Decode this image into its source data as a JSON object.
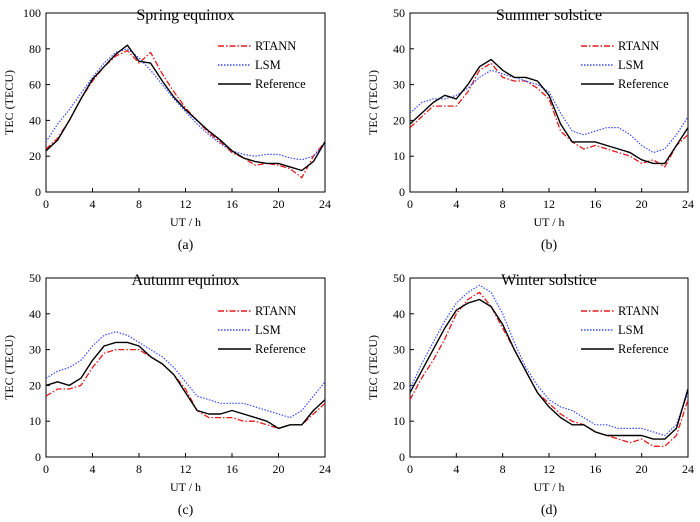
{
  "figure": {
    "legend_labels": [
      "RTANN",
      "LSM",
      "Reference"
    ],
    "colors": {
      "RTANN": "#e41a1c",
      "LSM": "#3b4cff",
      "Reference": "#000000"
    }
  },
  "chart_data": [
    {
      "type": "line",
      "panel": "(a)",
      "title": "Spring equinox",
      "xlabel": "UT / h",
      "ylabel": "TEC (TECU)",
      "xlim": [
        0,
        24
      ],
      "ylim": [
        0,
        100
      ],
      "xticks": [
        "0",
        "4",
        "8",
        "12",
        "16",
        "20",
        "24"
      ],
      "yticks": [
        "0",
        "20",
        "40",
        "60",
        "80",
        "100"
      ],
      "legend": "top-right",
      "x": [
        0,
        1,
        2,
        3,
        4,
        5,
        6,
        7,
        8,
        9,
        10,
        11,
        12,
        13,
        14,
        15,
        16,
        17,
        18,
        19,
        20,
        21,
        22,
        23,
        24
      ],
      "series": [
        {
          "name": "RTANN",
          "values": [
            24,
            30,
            40,
            52,
            62,
            70,
            76,
            79,
            72,
            78,
            66,
            56,
            47,
            40,
            33,
            28,
            22,
            19,
            15,
            16,
            15,
            13,
            8,
            20,
            28
          ]
        },
        {
          "name": "LSM",
          "values": [
            28,
            38,
            46,
            55,
            64,
            72,
            78,
            80,
            75,
            68,
            60,
            52,
            45,
            38,
            32,
            27,
            23,
            21,
            20,
            21,
            21,
            19,
            18,
            20,
            27
          ]
        },
        {
          "name": "Reference",
          "values": [
            23,
            29,
            40,
            52,
            63,
            70,
            77,
            82,
            73,
            72,
            62,
            53,
            46,
            40,
            34,
            29,
            23,
            19,
            17,
            16,
            16,
            14,
            12,
            17,
            28
          ]
        }
      ]
    },
    {
      "type": "line",
      "panel": "(b)",
      "title": "Summer solstice",
      "xlabel": "UT / h",
      "ylabel": "TEC (TECU)",
      "xlim": [
        0,
        24
      ],
      "ylim": [
        0,
        50
      ],
      "xticks": [
        "0",
        "4",
        "8",
        "12",
        "16",
        "20",
        "24"
      ],
      "yticks": [
        "0",
        "10",
        "20",
        "30",
        "40",
        "50"
      ],
      "legend": "top-right",
      "x": [
        0,
        1,
        2,
        3,
        4,
        5,
        6,
        7,
        8,
        9,
        10,
        11,
        12,
        13,
        14,
        15,
        16,
        17,
        18,
        19,
        20,
        21,
        22,
        23,
        24
      ],
      "series": [
        {
          "name": "RTANN",
          "values": [
            18,
            21,
            24,
            24,
            24,
            28,
            34,
            36,
            32,
            31,
            31,
            29,
            26,
            17,
            14,
            12,
            13,
            12,
            11,
            10,
            8,
            9,
            7,
            13,
            16
          ]
        },
        {
          "name": "LSM",
          "values": [
            22,
            25,
            26,
            26,
            27,
            29,
            32,
            34,
            33,
            32,
            31,
            30,
            28,
            22,
            17,
            16,
            17,
            18,
            18,
            16,
            13,
            11,
            12,
            16,
            21
          ]
        },
        {
          "name": "Reference",
          "values": [
            19,
            22,
            25,
            27,
            26,
            30,
            35,
            37,
            34,
            32,
            32,
            31,
            27,
            19,
            14,
            14,
            14,
            13,
            12,
            11,
            9,
            8,
            8,
            13,
            18
          ]
        }
      ]
    },
    {
      "type": "line",
      "panel": "(c)",
      "title": "Autumn equinox",
      "xlabel": "UT / h",
      "ylabel": "TEC (TECU)",
      "xlim": [
        0,
        24
      ],
      "ylim": [
        0,
        50
      ],
      "xticks": [
        "0",
        "4",
        "8",
        "12",
        "16",
        "20",
        "24"
      ],
      "yticks": [
        "0",
        "10",
        "20",
        "30",
        "40",
        "50"
      ],
      "legend": "top-right",
      "x": [
        0,
        1,
        2,
        3,
        4,
        5,
        6,
        7,
        8,
        9,
        10,
        11,
        12,
        13,
        14,
        15,
        16,
        17,
        18,
        19,
        20,
        21,
        22,
        23,
        24
      ],
      "series": [
        {
          "name": "RTANN",
          "values": [
            17,
            19,
            19,
            20,
            25,
            29,
            30,
            30,
            30,
            28,
            26,
            23,
            19,
            13,
            11,
            11,
            11,
            10,
            10,
            9,
            8,
            9,
            9,
            12,
            15
          ]
        },
        {
          "name": "LSM",
          "values": [
            22,
            24,
            25,
            27,
            31,
            34,
            35,
            34,
            32,
            30,
            28,
            25,
            21,
            17,
            16,
            15,
            15,
            15,
            14,
            13,
            12,
            11,
            13,
            17,
            21
          ]
        },
        {
          "name": "Reference",
          "values": [
            20,
            21,
            20,
            22,
            27,
            31,
            32,
            32,
            31,
            28,
            26,
            23,
            18,
            13,
            12,
            12,
            13,
            12,
            11,
            10,
            8,
            9,
            9,
            13,
            16
          ]
        }
      ]
    },
    {
      "type": "line",
      "panel": "(d)",
      "title": "Winter solstice",
      "xlabel": "UT / h",
      "ylabel": "TEC (TECU)",
      "xlim": [
        0,
        24
      ],
      "ylim": [
        0,
        50
      ],
      "xticks": [
        "0",
        "4",
        "8",
        "12",
        "16",
        "20",
        "24"
      ],
      "yticks": [
        "0",
        "10",
        "20",
        "30",
        "40",
        "50"
      ],
      "legend": "top-right",
      "x": [
        0,
        1,
        2,
        3,
        4,
        5,
        6,
        7,
        8,
        9,
        10,
        11,
        12,
        13,
        14,
        15,
        16,
        17,
        18,
        19,
        20,
        21,
        22,
        23,
        24
      ],
      "series": [
        {
          "name": "RTANN",
          "values": [
            16,
            22,
            27,
            33,
            40,
            44,
            46,
            42,
            36,
            30,
            24,
            18,
            15,
            12,
            10,
            9,
            7,
            6,
            5,
            4,
            5,
            3,
            3,
            6,
            16
          ]
        },
        {
          "name": "LSM",
          "values": [
            19,
            26,
            32,
            38,
            43,
            46,
            48,
            46,
            40,
            32,
            25,
            20,
            16,
            14,
            13,
            11,
            9,
            9,
            8,
            8,
            8,
            7,
            6,
            9,
            18
          ]
        },
        {
          "name": "Reference",
          "values": [
            18,
            24,
            30,
            36,
            41,
            43,
            44,
            42,
            37,
            30,
            24,
            18,
            14,
            11,
            9,
            9,
            7,
            6,
            6,
            6,
            6,
            5,
            5,
            8,
            19
          ]
        }
      ]
    }
  ]
}
